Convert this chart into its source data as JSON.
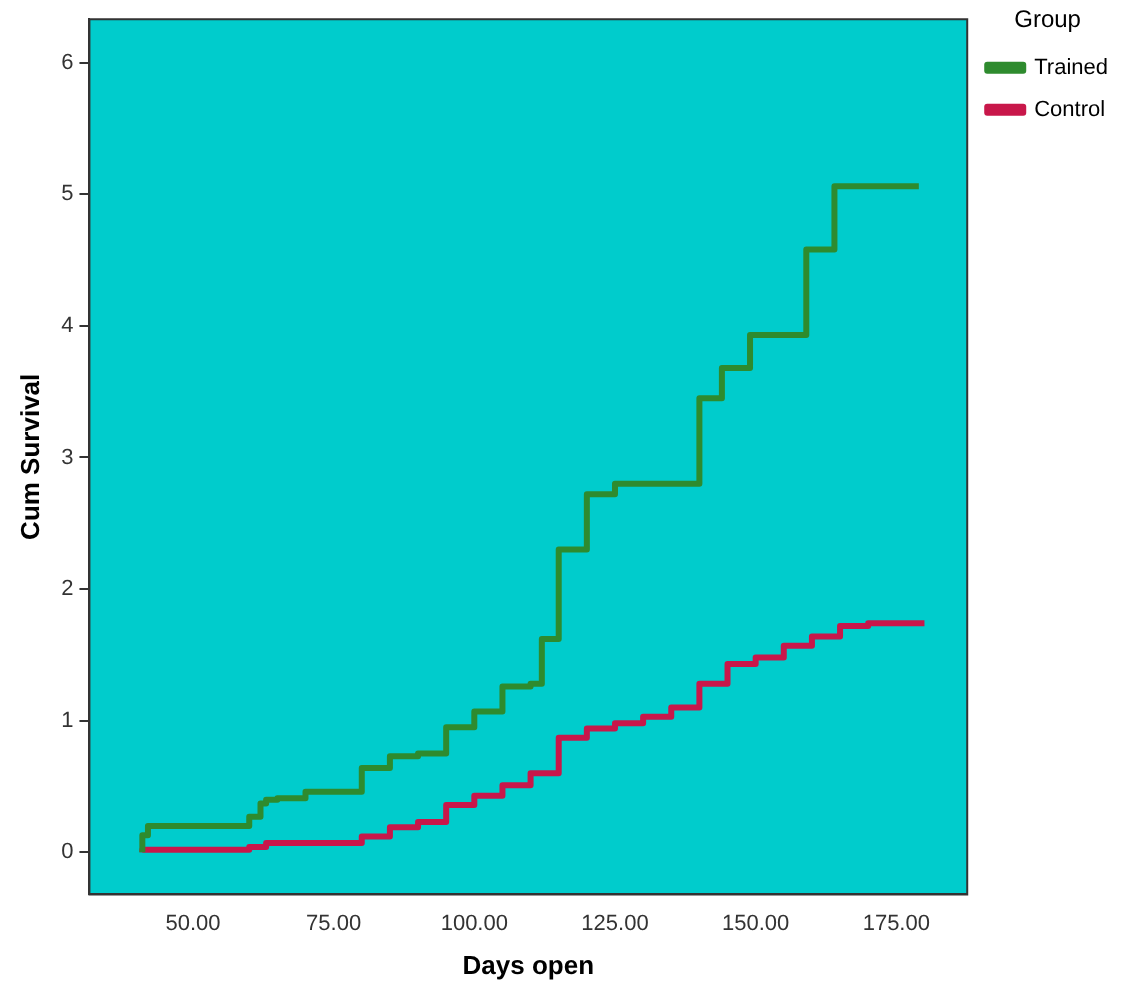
{
  "chart_data": {
    "type": "step",
    "xlabel": "Days open",
    "ylabel": "Cum Survival",
    "legend_title": "Group",
    "legend": "top right",
    "grid": false,
    "marker": "none",
    "xlim": [
      31.6,
      187.6
    ],
    "ylim": [
      -0.32,
      6.33
    ],
    "xticks": [
      {
        "value": 50,
        "label": "50.00"
      },
      {
        "value": 75,
        "label": "75.00"
      },
      {
        "value": 100,
        "label": "100.00"
      },
      {
        "value": 125,
        "label": "125.00"
      },
      {
        "value": 150,
        "label": "150.00"
      },
      {
        "value": 175,
        "label": "175.00"
      }
    ],
    "yticks": [
      0,
      1,
      2,
      3,
      4,
      5,
      6
    ],
    "series": [
      {
        "name": "Trained",
        "color": "#2e8b2e",
        "x": [
          41,
          42,
          60,
          62,
          63,
          65,
          70,
          80,
          85,
          90,
          95,
          100,
          105,
          110,
          112,
          115,
          120,
          125,
          140,
          144,
          149,
          159,
          164,
          169,
          179
        ],
        "values": [
          0,
          0.13,
          0.2,
          0.27,
          0.37,
          0.4,
          0.41,
          0.46,
          0.64,
          0.73,
          0.75,
          0.95,
          1.07,
          1.26,
          1.28,
          1.62,
          2.3,
          2.72,
          2.8,
          3.45,
          3.68,
          3.93,
          4.58,
          5.06,
          5.06
        ]
      },
      {
        "name": "Control",
        "color": "#c8174a",
        "x": [
          41,
          60,
          63,
          80,
          85,
          90,
          95,
          100,
          105,
          110,
          115,
          120,
          125,
          130,
          135,
          140,
          145,
          150,
          155,
          160,
          165,
          170,
          175,
          180
        ],
        "values": [
          0,
          0.02,
          0.04,
          0.07,
          0.12,
          0.19,
          0.23,
          0.36,
          0.43,
          0.51,
          0.6,
          0.87,
          0.94,
          0.98,
          1.03,
          1.1,
          1.28,
          1.43,
          1.48,
          1.57,
          1.64,
          1.72,
          1.74,
          1.74
        ]
      }
    ]
  }
}
